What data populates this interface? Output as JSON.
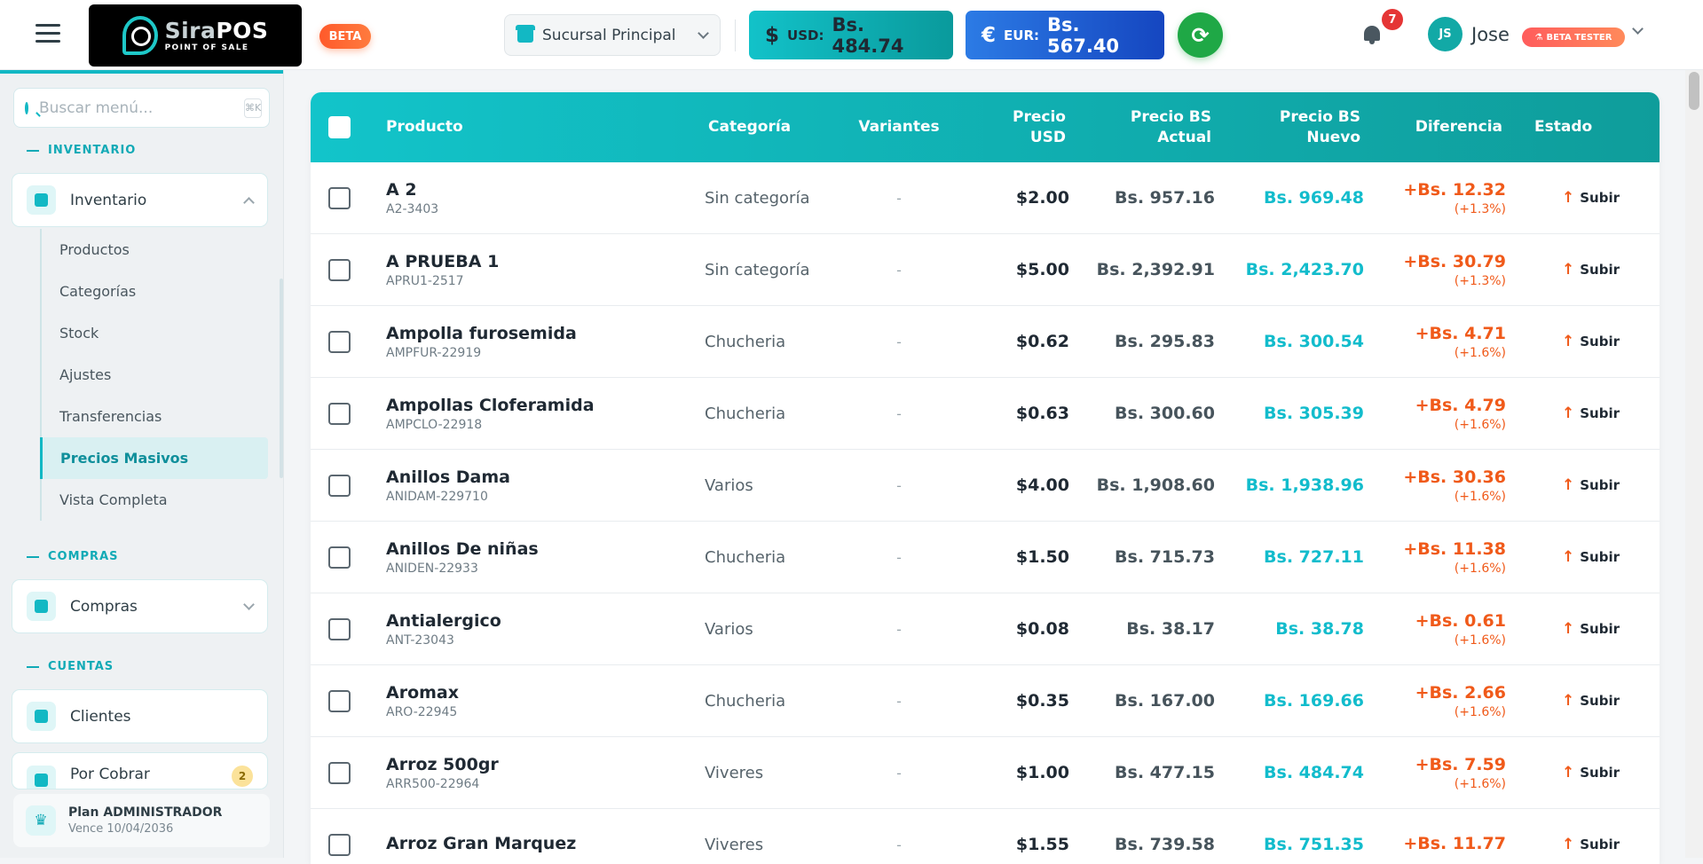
{
  "header": {
    "logo_brand_a": "Sira",
    "logo_brand_b": "POS",
    "logo_sub": "POINT OF SALE",
    "beta_label": "BETA",
    "branch": "Sucursal Principal",
    "usd": {
      "symbol": "$",
      "code": "USD:",
      "value": "Bs. 484.74"
    },
    "eur": {
      "symbol": "€",
      "code": "EUR:",
      "value": "Bs. 567.40"
    },
    "notifications": "7",
    "user_initials": "JS",
    "user_name": "Jose",
    "user_badge": "BETA TESTER",
    "colors": {
      "accent": "#12b8c4",
      "usd": "#0fb5bb",
      "eur": "#1d5fd6",
      "refresh": "#1fa846",
      "beta": "#ff5a2b"
    }
  },
  "sidebar": {
    "search_placeholder": "Buscar menú...",
    "search_shortcut": "⌘K",
    "sections": [
      {
        "title": "INVENTARIO"
      },
      {
        "title": "COMPRAS"
      },
      {
        "title": "CUENTAS"
      }
    ],
    "inventario_label": "Inventario",
    "subitems": [
      "Productos",
      "Categorías",
      "Stock",
      "Ajustes",
      "Transferencias",
      "Precios Masivos",
      "Vista Completa"
    ],
    "active_subitem": "Precios Masivos",
    "compras_label": "Compras",
    "clientes_label": "Clientes",
    "por_cobrar_label": "Por Cobrar",
    "por_cobrar_count": "2",
    "plan_title": "Plan ADMINISTRADOR",
    "plan_expiry": "Vence 10/04/2036"
  },
  "table": {
    "headers": {
      "producto": "Producto",
      "categoria": "Categoría",
      "variantes": "Variantes",
      "precio_usd_1": "Precio",
      "precio_usd_2": "USD",
      "bs_actual_1": "Precio BS",
      "bs_actual_2": "Actual",
      "bs_nuevo_1": "Precio BS",
      "bs_nuevo_2": "Nuevo",
      "diferencia": "Diferencia",
      "estado": "Estado"
    },
    "rows": [
      {
        "name": "A 2",
        "sku": "A2-3403",
        "category": "Sin categoría",
        "variants": "-",
        "usd": "$2.00",
        "bs_actual": "Bs. 957.16",
        "bs_nuevo": "Bs. 969.48",
        "diff": "+Bs. 12.32",
        "pct": "(+1.3%)",
        "status": "Subir"
      },
      {
        "name": "A PRUEBA 1",
        "sku": "APRU1-2517",
        "category": "Sin categoría",
        "variants": "-",
        "usd": "$5.00",
        "bs_actual": "Bs. 2,392.91",
        "bs_nuevo": "Bs. 2,423.70",
        "diff": "+Bs. 30.79",
        "pct": "(+1.3%)",
        "status": "Subir"
      },
      {
        "name": "Ampolla furosemida",
        "sku": "AMPFUR-22919",
        "category": "Chucheria",
        "variants": "-",
        "usd": "$0.62",
        "bs_actual": "Bs. 295.83",
        "bs_nuevo": "Bs. 300.54",
        "diff": "+Bs. 4.71",
        "pct": "(+1.6%)",
        "status": "Subir"
      },
      {
        "name": "Ampollas Cloferamida",
        "sku": "AMPCLO-22918",
        "category": "Chucheria",
        "variants": "-",
        "usd": "$0.63",
        "bs_actual": "Bs. 300.60",
        "bs_nuevo": "Bs. 305.39",
        "diff": "+Bs. 4.79",
        "pct": "(+1.6%)",
        "status": "Subir"
      },
      {
        "name": "Anillos Dama",
        "sku": "ANIDAM-229710",
        "category": "Varios",
        "variants": "-",
        "usd": "$4.00",
        "bs_actual": "Bs. 1,908.60",
        "bs_nuevo": "Bs. 1,938.96",
        "diff": "+Bs. 30.36",
        "pct": "(+1.6%)",
        "status": "Subir"
      },
      {
        "name": "Anillos De niñas",
        "sku": "ANIDEN-22933",
        "category": "Chucheria",
        "variants": "-",
        "usd": "$1.50",
        "bs_actual": "Bs. 715.73",
        "bs_nuevo": "Bs. 727.11",
        "diff": "+Bs. 11.38",
        "pct": "(+1.6%)",
        "status": "Subir"
      },
      {
        "name": "Antialergico",
        "sku": "ANT-23043",
        "category": "Varios",
        "variants": "-",
        "usd": "$0.08",
        "bs_actual": "Bs. 38.17",
        "bs_nuevo": "Bs. 38.78",
        "diff": "+Bs. 0.61",
        "pct": "(+1.6%)",
        "status": "Subir"
      },
      {
        "name": "Aromax",
        "sku": "ARO-22945",
        "category": "Chucheria",
        "variants": "-",
        "usd": "$0.35",
        "bs_actual": "Bs. 167.00",
        "bs_nuevo": "Bs. 169.66",
        "diff": "+Bs. 2.66",
        "pct": "(+1.6%)",
        "status": "Subir"
      },
      {
        "name": "Arroz 500gr",
        "sku": "ARR500-22964",
        "category": "Viveres",
        "variants": "-",
        "usd": "$1.00",
        "bs_actual": "Bs. 477.15",
        "bs_nuevo": "Bs. 484.74",
        "diff": "+Bs. 7.59",
        "pct": "(+1.6%)",
        "status": "Subir"
      },
      {
        "name": "Arroz Gran Marquez",
        "sku": "",
        "category": "Viveres",
        "variants": "-",
        "usd": "$1.55",
        "bs_actual": "Bs. 739.58",
        "bs_nuevo": "Bs. 751.35",
        "diff": "+Bs. 11.77",
        "pct": "",
        "status": "Subir"
      }
    ]
  }
}
